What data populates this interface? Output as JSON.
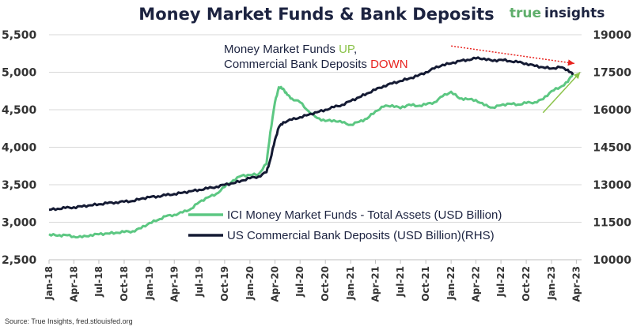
{
  "header": {
    "title": "Money Market Funds & Bank Deposits",
    "brand_true": "true",
    "brand_insights": "insights"
  },
  "annotation": {
    "line1": "Money Market Funds ",
    "line1_highlight": "UP",
    "line1_end": ",",
    "line2": "Commercial Bank Deposits ",
    "line2_highlight": "DOWN",
    "up_color": "#8bc34a",
    "down_color": "#e8231f"
  },
  "source": "Source: True Insights, fred.stlouisfed.org",
  "chart_data": {
    "type": "line",
    "title": "Money Market Funds & Bank Deposits",
    "x_tick_labels": [
      "Jan-18",
      "Apr-18",
      "Jul-18",
      "Oct-18",
      "Jan-19",
      "Apr-19",
      "Jul-19",
      "Oct-19",
      "Jan-20",
      "Apr-20",
      "Jul-20",
      "Oct-20",
      "Jan-21",
      "Apr-21",
      "Jul-21",
      "Oct-21",
      "Jan-22",
      "Apr-22",
      "Jul-22",
      "Oct-22",
      "Jan-23",
      "Apr-23"
    ],
    "y_left": {
      "ylim": [
        2500,
        5500
      ],
      "ticks": [
        "2,500",
        "3,000",
        "3,500",
        "4,000",
        "4,500",
        "5,000",
        "5,500"
      ]
    },
    "y_right": {
      "ylim": [
        10000,
        19000
      ],
      "ticks": [
        "10000",
        "11500",
        "13000",
        "14500",
        "16000",
        "17500",
        "19000"
      ]
    },
    "grid": true,
    "legend_position": "bottom-center",
    "series": [
      {
        "name": "ICI Money Market Funds - Total Assets (USD Billion)",
        "axis": "left",
        "color": "#5cc782",
        "x": [
          "2018-01-01",
          "2018-02-01",
          "2018-03-01",
          "2018-04-01",
          "2018-05-01",
          "2018-06-01",
          "2018-07-01",
          "2018-08-01",
          "2018-09-01",
          "2018-10-01",
          "2018-11-01",
          "2018-12-01",
          "2019-01-01",
          "2019-02-01",
          "2019-03-01",
          "2019-04-01",
          "2019-05-01",
          "2019-06-01",
          "2019-07-01",
          "2019-08-01",
          "2019-09-01",
          "2019-10-01",
          "2019-11-01",
          "2019-12-01",
          "2020-01-01",
          "2020-02-01",
          "2020-03-01",
          "2020-03-15",
          "2020-04-01",
          "2020-04-15",
          "2020-05-01",
          "2020-05-15",
          "2020-06-01",
          "2020-07-01",
          "2020-08-01",
          "2020-09-01",
          "2020-10-01",
          "2020-11-01",
          "2020-12-01",
          "2021-01-01",
          "2021-02-01",
          "2021-03-01",
          "2021-04-01",
          "2021-05-01",
          "2021-06-01",
          "2021-07-01",
          "2021-08-01",
          "2021-09-01",
          "2021-10-01",
          "2021-11-01",
          "2021-12-01",
          "2022-01-01",
          "2022-02-01",
          "2022-03-01",
          "2022-04-01",
          "2022-05-01",
          "2022-06-01",
          "2022-07-01",
          "2022-08-01",
          "2022-09-01",
          "2022-10-01",
          "2022-11-01",
          "2022-12-01",
          "2023-01-01",
          "2023-02-01",
          "2023-03-01",
          "2023-03-20"
        ],
        "values": [
          2840,
          2820,
          2830,
          2810,
          2800,
          2830,
          2840,
          2850,
          2860,
          2870,
          2880,
          2920,
          2990,
          3030,
          3080,
          3100,
          3130,
          3180,
          3270,
          3330,
          3380,
          3470,
          3560,
          3620,
          3630,
          3640,
          3780,
          4200,
          4600,
          4800,
          4780,
          4700,
          4650,
          4600,
          4480,
          4390,
          4350,
          4360,
          4330,
          4300,
          4340,
          4380,
          4480,
          4540,
          4560,
          4520,
          4570,
          4550,
          4570,
          4600,
          4680,
          4740,
          4650,
          4640,
          4630,
          4560,
          4530,
          4560,
          4580,
          4570,
          4590,
          4600,
          4640,
          4750,
          4800,
          4870,
          4990
        ]
      },
      {
        "name": "US Commercial Bank Deposits (USD Billion)(RHS)",
        "axis": "right",
        "color": "#141a33",
        "x": [
          "2018-01-01",
          "2018-02-01",
          "2018-03-01",
          "2018-04-01",
          "2018-05-01",
          "2018-06-01",
          "2018-07-01",
          "2018-08-01",
          "2018-09-01",
          "2018-10-01",
          "2018-11-01",
          "2018-12-01",
          "2019-01-01",
          "2019-02-01",
          "2019-03-01",
          "2019-04-01",
          "2019-05-01",
          "2019-06-01",
          "2019-07-01",
          "2019-08-01",
          "2019-09-01",
          "2019-10-01",
          "2019-11-01",
          "2019-12-01",
          "2020-01-01",
          "2020-02-01",
          "2020-03-01",
          "2020-03-15",
          "2020-04-01",
          "2020-04-15",
          "2020-05-01",
          "2020-06-01",
          "2020-07-01",
          "2020-08-01",
          "2020-09-01",
          "2020-10-01",
          "2020-11-01",
          "2020-12-01",
          "2021-01-01",
          "2021-02-01",
          "2021-03-01",
          "2021-04-01",
          "2021-05-01",
          "2021-06-01",
          "2021-07-01",
          "2021-08-01",
          "2021-09-01",
          "2021-10-01",
          "2021-11-01",
          "2021-12-01",
          "2022-01-01",
          "2022-02-01",
          "2022-03-01",
          "2022-04-01",
          "2022-05-01",
          "2022-06-01",
          "2022-07-01",
          "2022-08-01",
          "2022-09-01",
          "2022-10-01",
          "2022-11-01",
          "2022-12-01",
          "2023-01-01",
          "2023-02-01",
          "2023-03-01",
          "2023-03-20"
        ],
        "values": [
          12000,
          12040,
          12070,
          12100,
          12130,
          12180,
          12220,
          12260,
          12300,
          12320,
          12350,
          12440,
          12500,
          12540,
          12580,
          12630,
          12680,
          12740,
          12800,
          12850,
          12920,
          13000,
          13060,
          13160,
          13260,
          13330,
          13500,
          14000,
          14800,
          15300,
          15500,
          15600,
          15700,
          15800,
          15900,
          16000,
          16100,
          16200,
          16350,
          16500,
          16650,
          16800,
          16950,
          17050,
          17150,
          17250,
          17350,
          17500,
          17650,
          17800,
          17850,
          17950,
          18000,
          18050,
          18050,
          17950,
          18000,
          17950,
          17900,
          17850,
          17750,
          17700,
          17650,
          17700,
          17600,
          17400
        ]
      }
    ],
    "trend_arrows": [
      {
        "from": {
          "x": "2022-01-01",
          "axis": "right",
          "y": 18550
        },
        "to": {
          "x": "2023-03-25",
          "axis": "right",
          "y": 17850
        },
        "color": "#e8231f",
        "dashed": true
      },
      {
        "from": {
          "x": "2022-12-01",
          "axis": "left",
          "y": 4460
        },
        "to": {
          "x": "2023-04-15",
          "axis": "left",
          "y": 5000
        },
        "color": "#8bc34a",
        "dashed": false
      }
    ]
  }
}
